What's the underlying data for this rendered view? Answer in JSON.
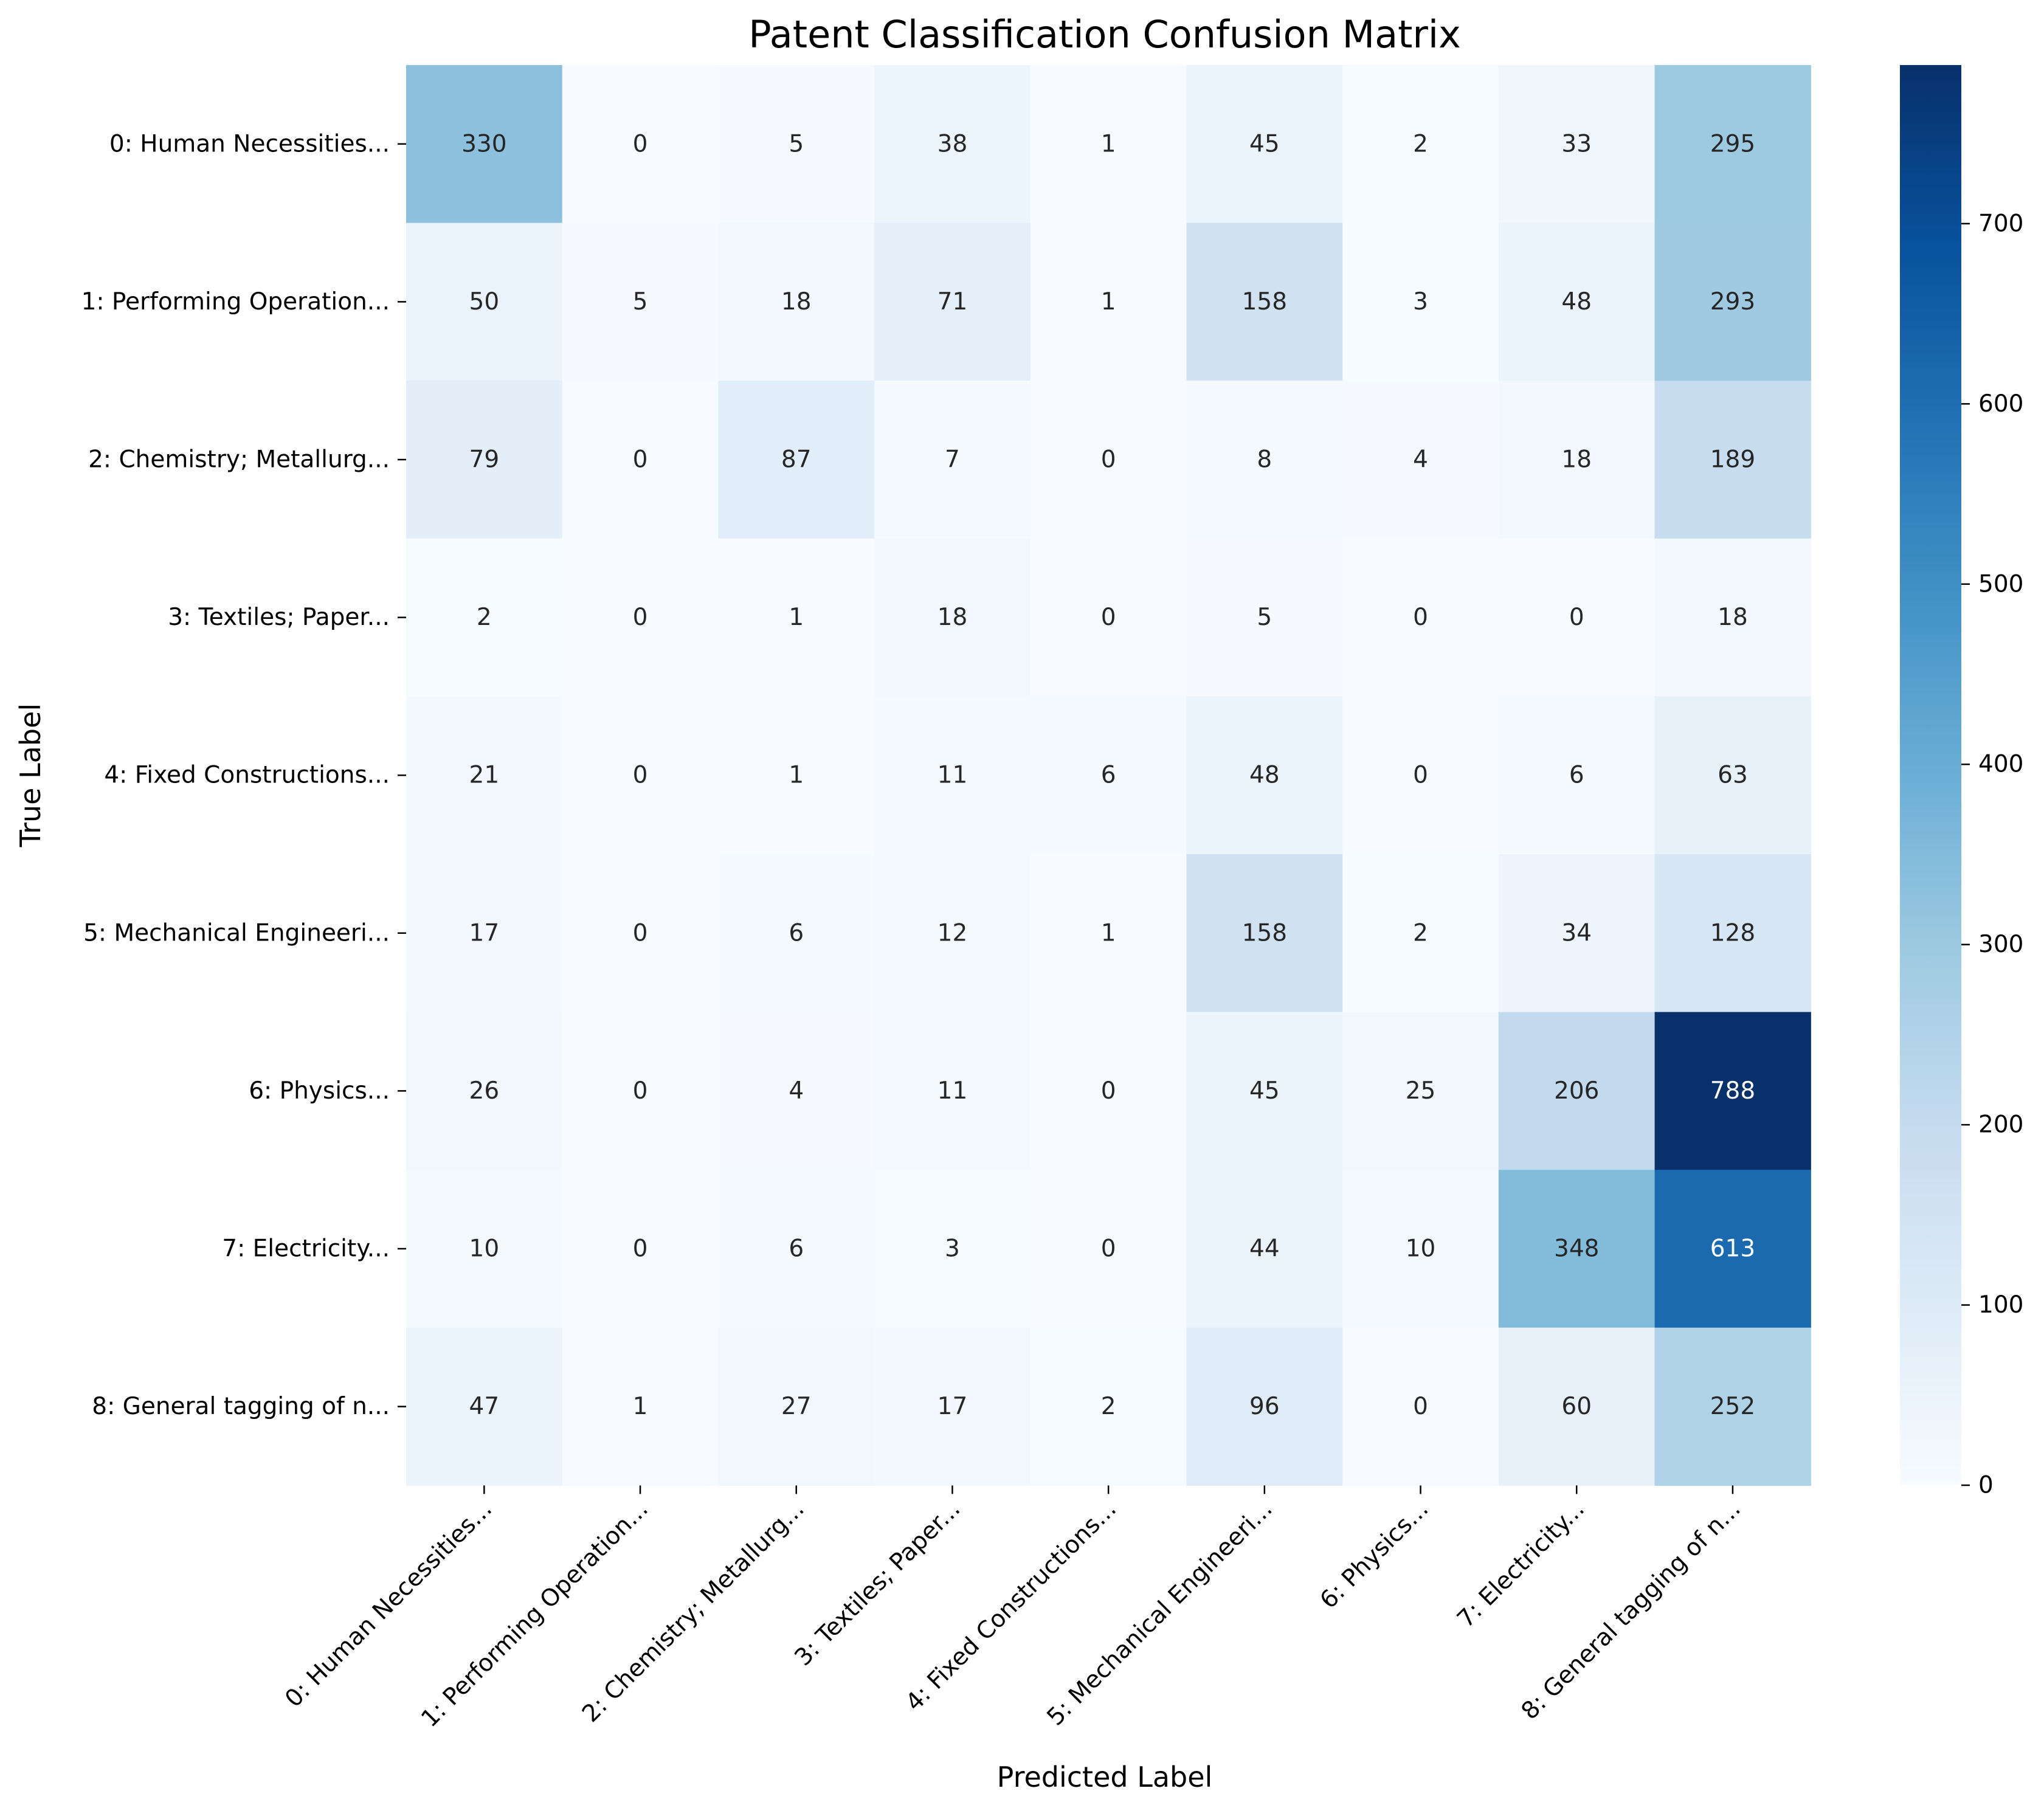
{
  "chart_data": {
    "type": "heatmap",
    "title": "Patent Classification Confusion Matrix",
    "xlabel": "Predicted Label",
    "ylabel": "True Label",
    "x_categories": [
      "0: Human Necessities...",
      "1: Performing Operation...",
      "2: Chemistry; Metallurg...",
      "3: Textiles; Paper...",
      "4: Fixed Constructions...",
      "5: Mechanical Engineeri...",
      "6: Physics...",
      "7: Electricity...",
      "8: General tagging of n..."
    ],
    "y_categories": [
      "0: Human Necessities...",
      "1: Performing Operation...",
      "2: Chemistry; Metallurg...",
      "3: Textiles; Paper...",
      "4: Fixed Constructions...",
      "5: Mechanical Engineeri...",
      "6: Physics...",
      "7: Electricity...",
      "8: General tagging of n..."
    ],
    "values": [
      [
        330,
        0,
        5,
        38,
        1,
        45,
        2,
        33,
        295
      ],
      [
        50,
        5,
        18,
        71,
        1,
        158,
        3,
        48,
        293
      ],
      [
        79,
        0,
        87,
        7,
        0,
        8,
        4,
        18,
        189
      ],
      [
        2,
        0,
        1,
        18,
        0,
        5,
        0,
        0,
        18
      ],
      [
        21,
        0,
        1,
        11,
        6,
        48,
        0,
        6,
        63
      ],
      [
        17,
        0,
        6,
        12,
        1,
        158,
        2,
        34,
        128
      ],
      [
        26,
        0,
        4,
        11,
        0,
        45,
        25,
        206,
        788
      ],
      [
        10,
        0,
        6,
        3,
        0,
        44,
        10,
        348,
        613
      ],
      [
        47,
        1,
        27,
        17,
        2,
        96,
        0,
        60,
        252
      ]
    ],
    "colormap": "Blues",
    "colorbar": {
      "range": [
        0,
        788
      ],
      "ticks": [
        0,
        100,
        200,
        300,
        400,
        500,
        600,
        700
      ]
    },
    "grid": false,
    "legend": "colorbar-right"
  }
}
